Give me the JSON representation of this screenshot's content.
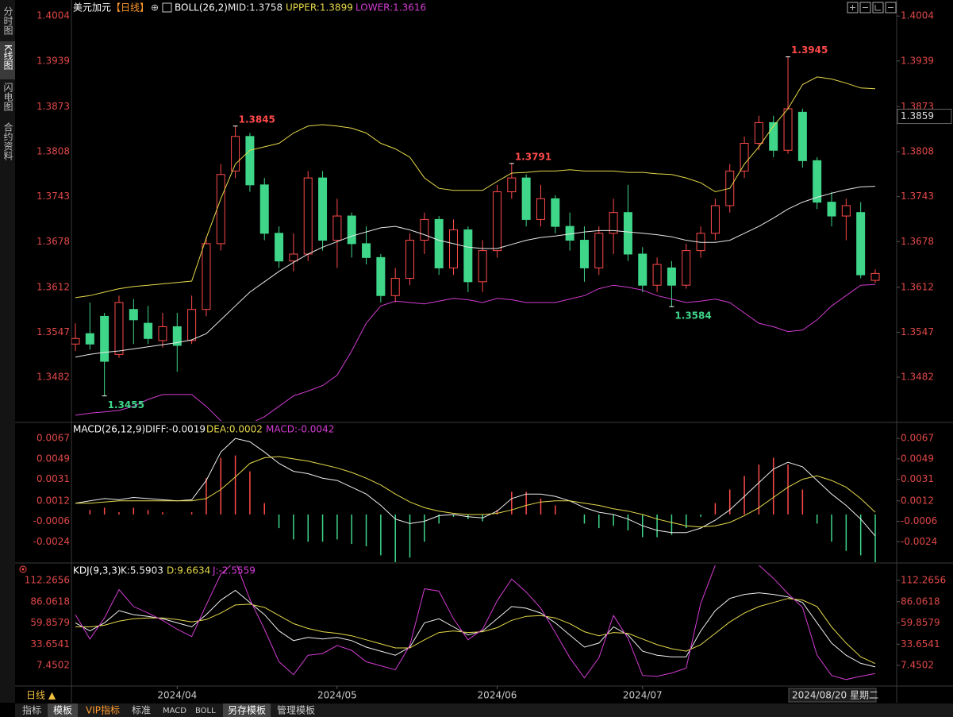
{
  "chart_data": [
    {
      "type": "candlestick",
      "title": "美元加元",
      "period": "【日线】",
      "indicator": "BOLL(26,2)",
      "up_color": "#ff4a4a",
      "down_color": "#3fd68a",
      "high_label_color": "#ff4a4a",
      "low_label_color": "#3fd68a",
      "categories": [
        null,
        null,
        null,
        null,
        null,
        null,
        null,
        "2024/04",
        null,
        null,
        null,
        null,
        null,
        null,
        null,
        null,
        null,
        null,
        "2024/05",
        null,
        null,
        null,
        null,
        null,
        null,
        null,
        null,
        null,
        null,
        "2024/06",
        null,
        null,
        null,
        null,
        null,
        null,
        null,
        null,
        null,
        "2024/07",
        null,
        null,
        null,
        null,
        null,
        null,
        null,
        null,
        null,
        null,
        null,
        null,
        null,
        null,
        null,
        null
      ],
      "open": [
        1.353,
        1.3545,
        1.357,
        1.3515,
        1.358,
        1.356,
        1.3535,
        1.3555,
        1.3535,
        1.358,
        1.3675,
        1.378,
        1.383,
        1.376,
        1.369,
        1.365,
        1.366,
        1.377,
        1.368,
        1.3715,
        1.3675,
        1.3655,
        1.36,
        1.3625,
        1.368,
        1.371,
        1.364,
        1.3695,
        1.362,
        1.3665,
        1.375,
        1.377,
        1.371,
        1.374,
        1.37,
        1.368,
        1.364,
        1.369,
        1.372,
        1.366,
        1.3615,
        1.364,
        1.3615,
        1.3665,
        1.369,
        1.373,
        1.378,
        1.382,
        1.385,
        1.381,
        1.3865,
        1.3795,
        1.3735,
        1.3715,
        1.372,
        1.3622
      ],
      "high": [
        1.356,
        1.359,
        1.3575,
        1.36,
        1.3595,
        1.3585,
        1.3575,
        1.3575,
        1.36,
        1.3685,
        1.379,
        1.3845,
        1.3835,
        1.377,
        1.37,
        1.369,
        1.378,
        1.378,
        1.374,
        1.372,
        1.37,
        1.366,
        1.364,
        1.369,
        1.372,
        1.3715,
        1.371,
        1.37,
        1.368,
        1.376,
        1.3791,
        1.3775,
        1.376,
        1.3745,
        1.372,
        1.37,
        1.37,
        1.374,
        1.376,
        1.367,
        1.3655,
        1.365,
        1.3675,
        1.37,
        1.374,
        1.379,
        1.383,
        1.386,
        1.386,
        1.3945,
        1.387,
        1.38,
        1.375,
        1.374,
        1.3735,
        1.3638
      ],
      "low": [
        1.352,
        1.3522,
        1.3455,
        1.351,
        1.353,
        1.353,
        1.3525,
        1.349,
        1.353,
        1.357,
        1.3665,
        1.377,
        1.375,
        1.368,
        1.364,
        1.3635,
        1.365,
        1.3665,
        1.364,
        1.3655,
        1.3645,
        1.359,
        1.359,
        1.3615,
        1.366,
        1.363,
        1.363,
        1.3605,
        1.3605,
        1.3655,
        1.374,
        1.37,
        1.37,
        1.369,
        1.3665,
        1.362,
        1.363,
        1.366,
        1.365,
        1.3605,
        1.3605,
        1.3584,
        1.361,
        1.3655,
        1.368,
        1.372,
        1.377,
        1.381,
        1.38,
        1.3805,
        1.3785,
        1.3725,
        1.37,
        1.368,
        1.3625,
        1.3618
      ],
      "close": [
        1.3538,
        1.353,
        1.3505,
        1.359,
        1.3565,
        1.3538,
        1.3555,
        1.3528,
        1.358,
        1.3675,
        1.3775,
        1.383,
        1.376,
        1.369,
        1.365,
        1.366,
        1.377,
        1.368,
        1.3715,
        1.3675,
        1.3655,
        1.36,
        1.3625,
        1.368,
        1.371,
        1.364,
        1.3695,
        1.362,
        1.3665,
        1.375,
        1.377,
        1.371,
        1.374,
        1.37,
        1.368,
        1.364,
        1.369,
        1.372,
        1.366,
        1.3615,
        1.3645,
        1.3615,
        1.3665,
        1.369,
        1.373,
        1.378,
        1.382,
        1.385,
        1.381,
        1.387,
        1.3795,
        1.3735,
        1.3715,
        1.373,
        1.363,
        1.3632
      ],
      "high_value_labels": [
        null,
        null,
        null,
        null,
        null,
        null,
        null,
        null,
        null,
        null,
        null,
        "1.3845",
        null,
        null,
        null,
        null,
        null,
        null,
        null,
        null,
        null,
        null,
        null,
        null,
        null,
        null,
        null,
        null,
        null,
        null,
        "1.3791",
        null,
        null,
        null,
        null,
        null,
        null,
        null,
        null,
        null,
        null,
        null,
        null,
        null,
        null,
        null,
        null,
        null,
        null,
        "1.3945",
        null,
        null,
        null,
        null,
        null,
        null
      ],
      "low_value_labels": [
        null,
        null,
        "1.3455",
        null,
        null,
        null,
        null,
        null,
        null,
        null,
        null,
        null,
        null,
        null,
        null,
        null,
        null,
        null,
        null,
        null,
        null,
        null,
        null,
        null,
        null,
        null,
        null,
        null,
        null,
        null,
        null,
        null,
        null,
        null,
        null,
        null,
        null,
        null,
        null,
        null,
        null,
        "1.3584",
        null,
        null,
        null,
        null,
        null,
        null,
        null,
        null,
        null,
        null,
        null,
        null,
        null,
        null
      ],
      "series": [
        {
          "name": "MID:1.3758",
          "color": "#e8e8e8",
          "values": [
            1.3511,
            1.3515,
            1.3518,
            1.352,
            1.3523,
            1.3526,
            1.3529,
            1.3532,
            1.3536,
            1.3545,
            1.3565,
            1.3585,
            1.3605,
            1.362,
            1.3635,
            1.3648,
            1.366,
            1.367,
            1.3678,
            1.3686,
            1.3692,
            1.3698,
            1.37,
            1.3695,
            1.3688,
            1.368,
            1.3675,
            1.367,
            1.3668,
            1.3668,
            1.3674,
            1.368,
            1.3684,
            1.3686,
            1.3689,
            1.3692,
            1.3694,
            1.3694,
            1.3692,
            1.369,
            1.3688,
            1.3685,
            1.368,
            1.3677,
            1.3677,
            1.368,
            1.369,
            1.37,
            1.3712,
            1.3725,
            1.3735,
            1.3742,
            1.3748,
            1.3753,
            1.3757,
            1.3758
          ]
        },
        {
          "name": "UPPER:1.3899",
          "color": "#e6d84a",
          "values": [
            1.3597,
            1.36,
            1.3605,
            1.361,
            1.3613,
            1.3615,
            1.3617,
            1.3619,
            1.3621,
            1.3683,
            1.374,
            1.379,
            1.381,
            1.3815,
            1.382,
            1.3835,
            1.3845,
            1.3847,
            1.3845,
            1.3842,
            1.3835,
            1.382,
            1.3812,
            1.38,
            1.377,
            1.3755,
            1.3752,
            1.3752,
            1.3752,
            1.3765,
            1.3777,
            1.3778,
            1.378,
            1.378,
            1.3782,
            1.378,
            1.378,
            1.378,
            1.3778,
            1.3778,
            1.3776,
            1.3775,
            1.377,
            1.3763,
            1.375,
            1.3755,
            1.379,
            1.3815,
            1.3845,
            1.387,
            1.3905,
            1.3916,
            1.3913,
            1.3907,
            1.39,
            1.3899
          ]
        },
        {
          "name": "LOWER:1.3616",
          "color": "#d23cd2",
          "values": [
            1.3427,
            1.343,
            1.3432,
            1.3434,
            1.344,
            1.345,
            1.3457,
            1.3457,
            1.3457,
            1.344,
            1.3419,
            1.341,
            1.3415,
            1.3425,
            1.344,
            1.3455,
            1.3462,
            1.347,
            1.3485,
            1.352,
            1.356,
            1.3585,
            1.3592,
            1.359,
            1.3588,
            1.3592,
            1.3596,
            1.3594,
            1.359,
            1.3596,
            1.3594,
            1.359,
            1.359,
            1.359,
            1.3595,
            1.36,
            1.361,
            1.3615,
            1.3612,
            1.3608,
            1.36,
            1.3595,
            1.359,
            1.3592,
            1.3595,
            1.359,
            1.3575,
            1.356,
            1.3555,
            1.3548,
            1.355,
            1.3565,
            1.3585,
            1.36,
            1.3615,
            1.3616
          ]
        }
      ],
      "ylim": [
        1.3419,
        1.4018
      ],
      "yticks": [
        1.4004,
        1.3939,
        1.3873,
        1.3808,
        1.3743,
        1.3678,
        1.3612,
        1.3547,
        1.3482
      ],
      "tick_color": "#e04848",
      "cursor_price": 1.3859,
      "cursor_label": "2024/08/20 星期二"
    },
    {
      "type": "macd",
      "title": "MACD(26,12,9)",
      "up_color": "#ff4a4a",
      "down_color": "#3fd68a",
      "series": [
        {
          "name": "DIFF:-0.0019",
          "color": "#eeeeee",
          "kind": "line",
          "values": [
            0.001,
            0.0012,
            0.0014,
            0.0013,
            0.0015,
            0.0014,
            0.0013,
            0.0012,
            0.0013,
            0.003,
            0.0055,
            0.0067,
            0.0064,
            0.0055,
            0.0045,
            0.0038,
            0.0036,
            0.0032,
            0.003,
            0.0024,
            0.0018,
            0.0008,
            -0.0004,
            -0.0008,
            -0.0006,
            -0.0001,
            0,
            -0.0002,
            -0.0003,
            0.0003,
            0.0014,
            0.0018,
            0.0018,
            0.0016,
            0.0012,
            0.0006,
            0.0002,
            0,
            -0.0004,
            -0.001,
            -0.0014,
            -0.0016,
            -0.0016,
            -0.0012,
            -0.0005,
            0.0004,
            0.0016,
            0.0028,
            0.004,
            0.0046,
            0.0042,
            0.003,
            0.0018,
            0.0008,
            -0.0004,
            -0.0019
          ]
        },
        {
          "name": "DEA:0.0002",
          "color": "#e6d84a",
          "kind": "line",
          "values": [
            0.001,
            0.001,
            0.0011,
            0.0012,
            0.0012,
            0.0012,
            0.0012,
            0.0012,
            0.0012,
            0.0014,
            0.0022,
            0.0033,
            0.0045,
            0.005,
            0.0051,
            0.0049,
            0.0047,
            0.0044,
            0.0041,
            0.0037,
            0.0032,
            0.0026,
            0.0018,
            0.0011,
            0.0006,
            0.0003,
            0.0001,
            0,
            0,
            0.0001,
            0.0004,
            0.0008,
            0.0011,
            0.0012,
            0.0012,
            0.001,
            0.0008,
            0.0005,
            0.0003,
            0,
            -0.0004,
            -0.0007,
            -0.001,
            -0.0011,
            -0.001,
            -0.0007,
            -0.0001,
            0.0006,
            0.0015,
            0.0024,
            0.0031,
            0.0034,
            0.003,
            0.0024,
            0.0014,
            0.0002
          ]
        },
        {
          "name": "MACD:-0.0042",
          "color": "#d23cd2",
          "kind": "histogram",
          "values": [
            0,
            0.0004,
            0.0006,
            0.0002,
            0.0006,
            0.0004,
            0.0002,
            0,
            0.0002,
            0.0032,
            0.005,
            0.0052,
            0.0038,
            0.001,
            -0.0012,
            -0.0022,
            -0.0024,
            -0.0024,
            -0.0022,
            -0.0026,
            -0.0028,
            -0.0036,
            -0.0044,
            -0.0038,
            -0.0024,
            -0.0008,
            -0.0002,
            -0.0004,
            -0.0006,
            0.0004,
            0.002,
            0.002,
            0.0014,
            0.0008,
            0,
            -0.0008,
            -0.0012,
            -0.001,
            -0.0014,
            -0.002,
            -0.002,
            -0.0018,
            -0.0012,
            -0.0002,
            0.001,
            0.0022,
            0.0034,
            0.0044,
            0.005,
            0.0044,
            0.0022,
            -0.0008,
            -0.0024,
            -0.0032,
            -0.0036,
            -0.0042
          ]
        }
      ],
      "ylim": [
        -0.0042,
        0.0079
      ],
      "yticks": [
        0.0067,
        0.0049,
        0.0031,
        0.0012,
        -0.0006,
        -0.0024
      ],
      "tick_color": "#e04848"
    },
    {
      "type": "kdj",
      "title": "KDJ(9,3,3)",
      "series": [
        {
          "name": "K:5.5903",
          "color": "#eeeeee",
          "kind": "line",
          "values": [
            60,
            50,
            60,
            75,
            70,
            68,
            65,
            60,
            55,
            70,
            88,
            100,
            85,
            70,
            50,
            38,
            42,
            40,
            42,
            38,
            30,
            25,
            20,
            30,
            60,
            65,
            55,
            45,
            50,
            65,
            80,
            78,
            72,
            60,
            45,
            30,
            35,
            55,
            45,
            25,
            20,
            18,
            18,
            50,
            75,
            90,
            95,
            97,
            95,
            92,
            85,
            60,
            35,
            20,
            10,
            5.5903
          ]
        },
        {
          "name": "D:9.6634",
          "color": "#e6d84a",
          "kind": "line",
          "values": [
            55,
            55,
            57,
            62,
            65,
            66,
            66,
            64,
            61,
            64,
            72,
            82,
            83,
            79,
            69,
            59,
            53,
            49,
            47,
            44,
            39,
            34,
            29,
            29,
            39,
            48,
            50,
            48,
            49,
            54,
            63,
            68,
            69,
            66,
            59,
            49,
            44,
            48,
            47,
            40,
            33,
            28,
            25,
            33,
            47,
            61,
            72,
            80,
            85,
            90,
            88,
            80,
            55,
            35,
            18,
            9.6634
          ]
        },
        {
          "name": "J:-2.5559",
          "color": "#d23cd2",
          "kind": "line",
          "values": [
            70,
            40,
            66,
            101,
            80,
            72,
            63,
            52,
            43,
            82,
            120,
            136,
            89,
            52,
            12,
            -4,
            20,
            22,
            32,
            26,
            12,
            7,
            2,
            32,
            102,
            99,
            65,
            39,
            52,
            87,
            114,
            98,
            78,
            48,
            17,
            -8,
            17,
            69,
            41,
            -5,
            -6,
            -2,
            4,
            84,
            131,
            148,
            141,
            131,
            115,
            96,
            79,
            20,
            -5,
            -10,
            -6,
            -2.5559
          ]
        }
      ],
      "ylim": [
        -16.06,
        130.88
      ],
      "yticks": [
        112.2656,
        86.0618,
        59.8579,
        33.6541,
        7.4502
      ],
      "tick_color": "#e04848"
    }
  ],
  "sidebar": [
    "分时图",
    "K线图",
    "闪电图",
    "合约资料"
  ],
  "period_button": "日线 ▲",
  "toolbar": [
    "指标",
    "模板",
    "VIP指标",
    "标准",
    "MACD",
    "BOLL",
    "另存模板",
    "管理模板"
  ]
}
